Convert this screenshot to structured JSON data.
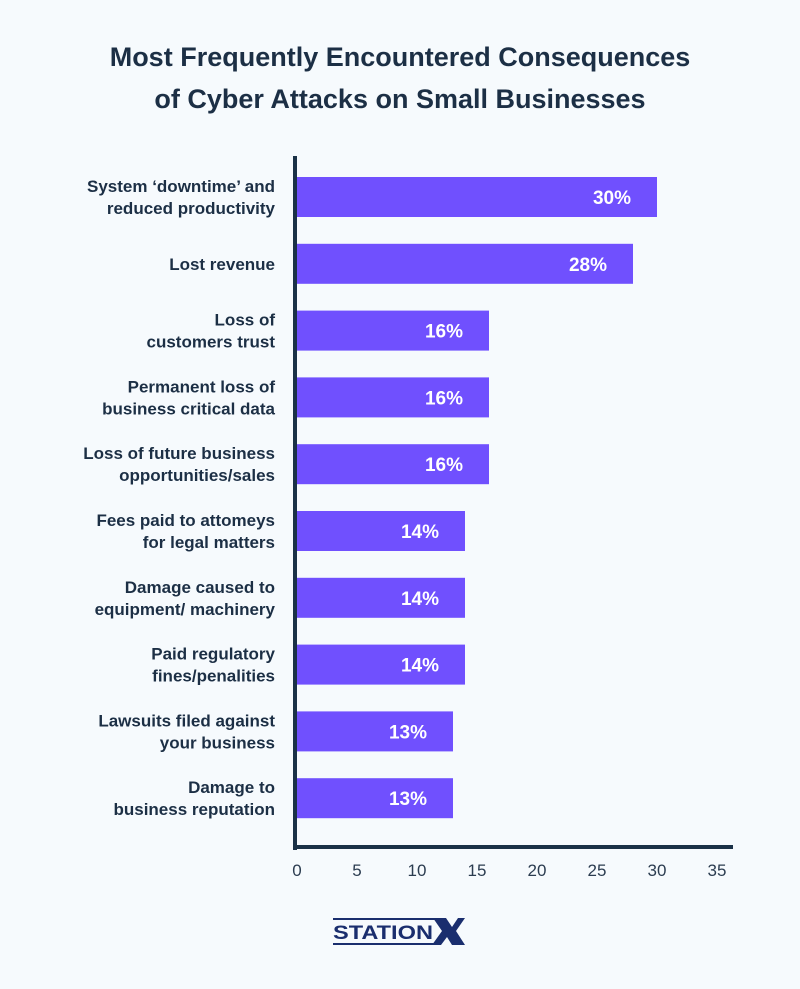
{
  "chart_data": {
    "type": "bar",
    "orientation": "horizontal",
    "title": "Most Frequently Encountered Consequences of Cyber Attacks on Small Businesses",
    "title_lines": [
      "Most Frequently Encountered Consequences",
      "of Cyber Attacks on Small Businesses"
    ],
    "categories": [
      [
        "System ‘downtime’ and",
        "reduced productivity"
      ],
      [
        "Lost revenue"
      ],
      [
        "Loss of",
        "customers trust"
      ],
      [
        "Permanent loss of",
        "business critical data"
      ],
      [
        "Loss of future business",
        "opportunities/sales"
      ],
      [
        "Fees paid to attomeys",
        "for legal matters"
      ],
      [
        "Damage caused to",
        "equipment/ machinery"
      ],
      [
        "Paid regulatory",
        "fines/penalities"
      ],
      [
        "Lawsuits filed against",
        "your business"
      ],
      [
        "Damage to",
        "business reputation"
      ]
    ],
    "values": [
      30,
      28,
      16,
      16,
      16,
      14,
      14,
      14,
      13,
      13
    ],
    "data_labels": [
      "30%",
      "28%",
      "16%",
      "16%",
      "16%",
      "14%",
      "14%",
      "14%",
      "13%",
      "13%"
    ],
    "xlim": [
      0,
      35
    ],
    "xticks": [
      "0",
      "5",
      "10",
      "15",
      "20",
      "25",
      "30",
      "35"
    ],
    "xlabel": "",
    "ylabel": "",
    "grid": false,
    "legend": "none",
    "colors": {
      "bar": "#7050fe",
      "axis": "#1a3147",
      "text": "#1c2f45",
      "background": "#f6fafd"
    }
  },
  "logo": {
    "text": "STATIONX",
    "color": "#1a2e6e"
  }
}
